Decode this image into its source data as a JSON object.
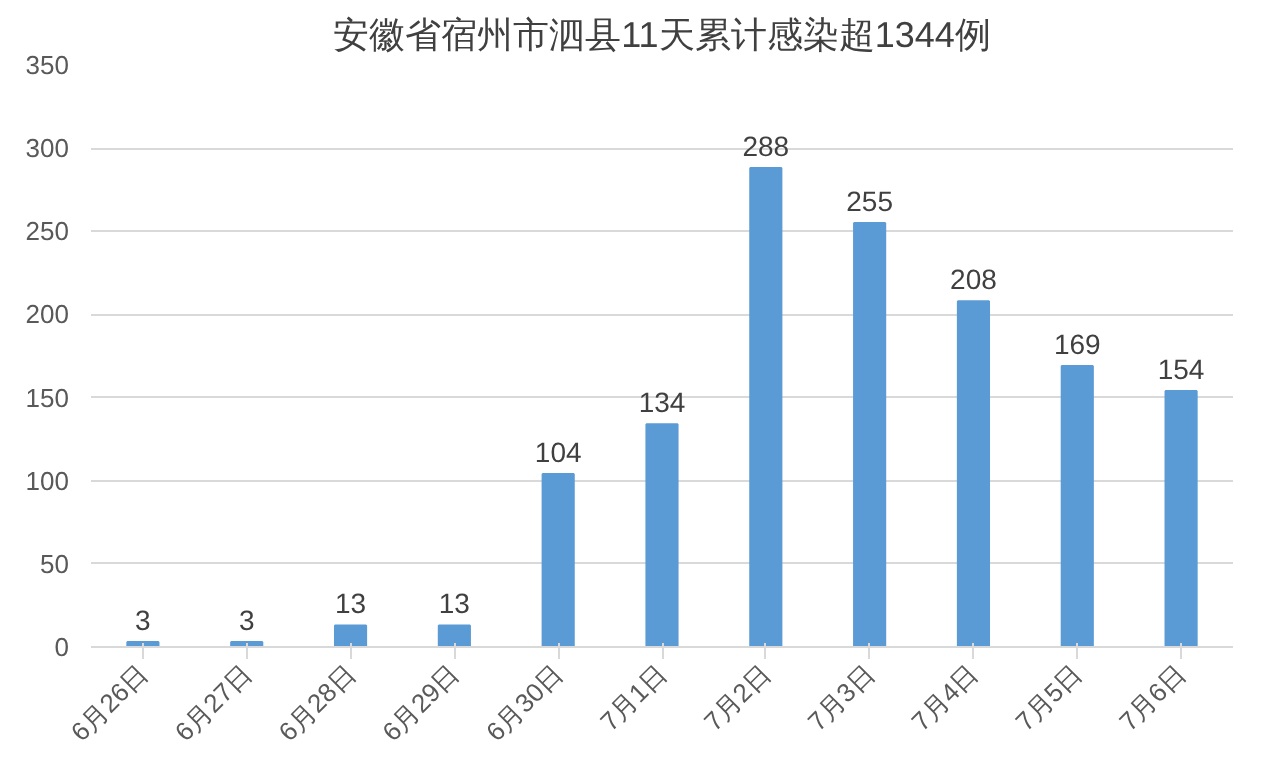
{
  "chart_data": {
    "type": "bar",
    "title": "安徽省宿州市泗县11天累计感染超1344例",
    "categories": [
      "6月26日",
      "6月27日",
      "6月28日",
      "6月29日",
      "6月30日",
      "7月1日",
      "7月2日",
      "7月3日",
      "7月4日",
      "7月5日",
      "7月6日"
    ],
    "values": [
      3,
      3,
      13,
      13,
      104,
      134,
      288,
      255,
      208,
      169,
      154
    ],
    "color": "#5b9bd5",
    "ylim": [
      0,
      350
    ],
    "yticks": [
      0,
      50,
      100,
      150,
      200,
      250,
      300,
      350
    ],
    "grid": "y",
    "data_labels": true
  }
}
